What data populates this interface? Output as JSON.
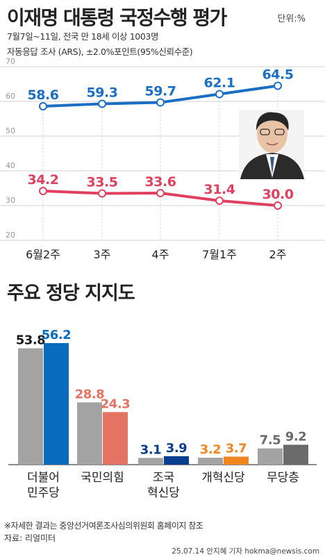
{
  "header": {
    "title": "이재명 대통령 국정수행 평가",
    "unit": "단위:%",
    "survey_note": "7월7일~11일, 전국 만 18세 이상 1003명",
    "method_note": "자동응답 조사 (ARS), ±2.0%포인트(95%신뢰수준)"
  },
  "section2": {
    "title": "주요 정당 지지도"
  },
  "footer": {
    "footnote": "※자세한 결과는 중앙선거여론조사심의위원회 홈페이지 참조",
    "source": "자료: 리얼미터",
    "credit": "25.07.14 안지혜 기자 hokma@newsis.com"
  },
  "colors": {
    "positive": "#1a6fc4",
    "negative": "#e0405e",
    "grid": "#d0d0d0",
    "axis_text": "#999999",
    "bar_gray": "#a3a3a3",
    "democratic": "#0a6cbf",
    "ppp": "#e57363",
    "rebuilding": "#0b3d8f",
    "reform": "#f2861e",
    "independent": "#6b6b6b"
  },
  "chart_data": [
    {
      "type": "line",
      "title": "",
      "xlabel": "",
      "ylabel": "",
      "x": [
        "6월2주",
        "3주",
        "4주",
        "7월1주",
        "2주"
      ],
      "ylim": [
        20,
        70
      ],
      "yticks": [
        20,
        30,
        40,
        50,
        60,
        70
      ],
      "grid": true,
      "series": [
        {
          "name": "",
          "color": "#1a6fc4",
          "values": [
            58.6,
            59.3,
            59.7,
            62.1,
            64.5
          ]
        },
        {
          "name": "",
          "color": "#e0405e",
          "values": [
            34.2,
            33.5,
            33.6,
            31.4,
            30.0
          ]
        }
      ],
      "labels": [
        [
          "58.6",
          "59.3",
          "59.7",
          "62.1",
          "64.5"
        ],
        [
          "34.2",
          "33.5",
          "33.6",
          "31.4",
          "30.0"
        ]
      ]
    },
    {
      "type": "bar",
      "title": "주요 정당 지지도",
      "categories": [
        "더불어\n민주당",
        "국민의힘",
        "조국\n혁신당",
        "개혁신당",
        "무당층"
      ],
      "series": [
        {
          "name": "",
          "values": [
            53.8,
            28.8,
            3.1,
            3.2,
            7.5
          ]
        },
        {
          "name": "",
          "values": [
            56.2,
            24.3,
            3.9,
            3.7,
            9.2
          ]
        }
      ],
      "labels": [
        [
          "53.8",
          "28.8",
          "3.1",
          "3.2",
          "7.5"
        ],
        [
          "56.2",
          "24.3",
          "3.9",
          "3.7",
          "9.2"
        ]
      ],
      "prev_colors": [
        "#a3a3a3",
        "#a3a3a3",
        "#a3a3a3",
        "#a3a3a3",
        "#a3a3a3"
      ],
      "curr_colors": [
        "#0a6cbf",
        "#e57363",
        "#0b3d8f",
        "#f2861e",
        "#6b6b6b"
      ],
      "prev_label_colors": [
        "#1a1a1a",
        "#e57363",
        "#0b3d8f",
        "#f2861e",
        "#6b6b6b"
      ],
      "curr_label_colors": [
        "#0a6cbf",
        "#e57363",
        "#0b3d8f",
        "#f2861e",
        "#6b6b6b"
      ],
      "ylim": [
        0,
        60
      ]
    }
  ]
}
